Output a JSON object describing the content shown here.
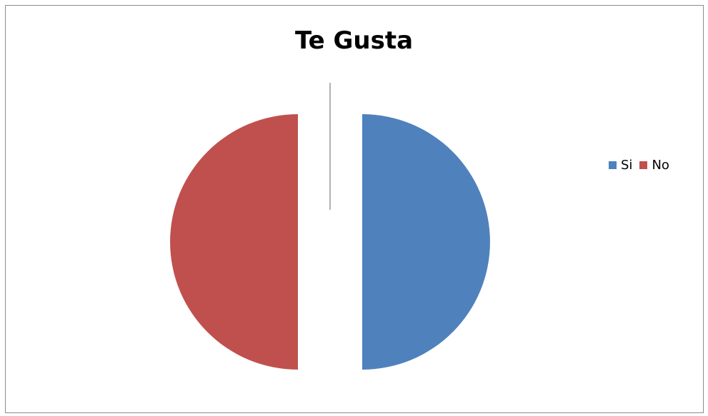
{
  "chart_data": {
    "type": "pie",
    "title": "Te Gusta",
    "categories": [
      "Si",
      "No"
    ],
    "values": [
      50,
      50
    ],
    "colors": [
      "#4f81bd",
      "#c0504d"
    ],
    "legend_position": "right",
    "exploded": true
  }
}
